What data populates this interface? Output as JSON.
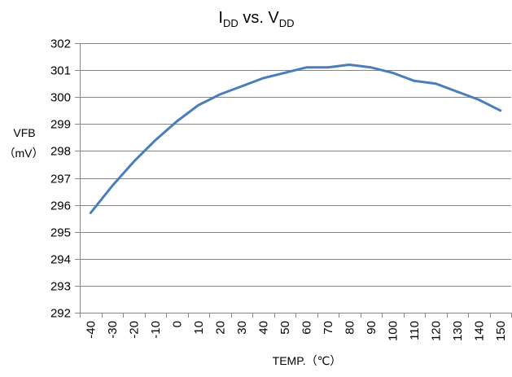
{
  "chart_data": {
    "type": "line",
    "title": {
      "base1": "I",
      "sub1": "DD",
      "middle": " vs. V",
      "sub2": "DD"
    },
    "ylabel_line1": "VFB",
    "ylabel_line2": "（mV）",
    "xlabel": "TEMP.（℃）",
    "categories": [
      "-40",
      "-30",
      "-20",
      "-10",
      "0",
      "10",
      "20",
      "30",
      "40",
      "50",
      "60",
      "70",
      "80",
      "90",
      "100",
      "110",
      "120",
      "130",
      "140",
      "150"
    ],
    "series": [
      {
        "values": [
          295.7,
          296.7,
          297.6,
          298.4,
          299.1,
          299.7,
          300.1,
          300.4,
          300.7,
          300.9,
          301.1,
          301.1,
          301.2,
          301.1,
          300.9,
          300.6,
          300.5,
          300.2,
          299.9,
          299.5
        ]
      }
    ],
    "ylim": [
      292,
      302
    ],
    "yticks": [
      292,
      293,
      294,
      295,
      296,
      297,
      298,
      299,
      300,
      301,
      302
    ],
    "grid": true,
    "legend": "none",
    "colors": {
      "line": "#4a7ebb",
      "grid": "#868686",
      "axis": "#868686"
    }
  }
}
